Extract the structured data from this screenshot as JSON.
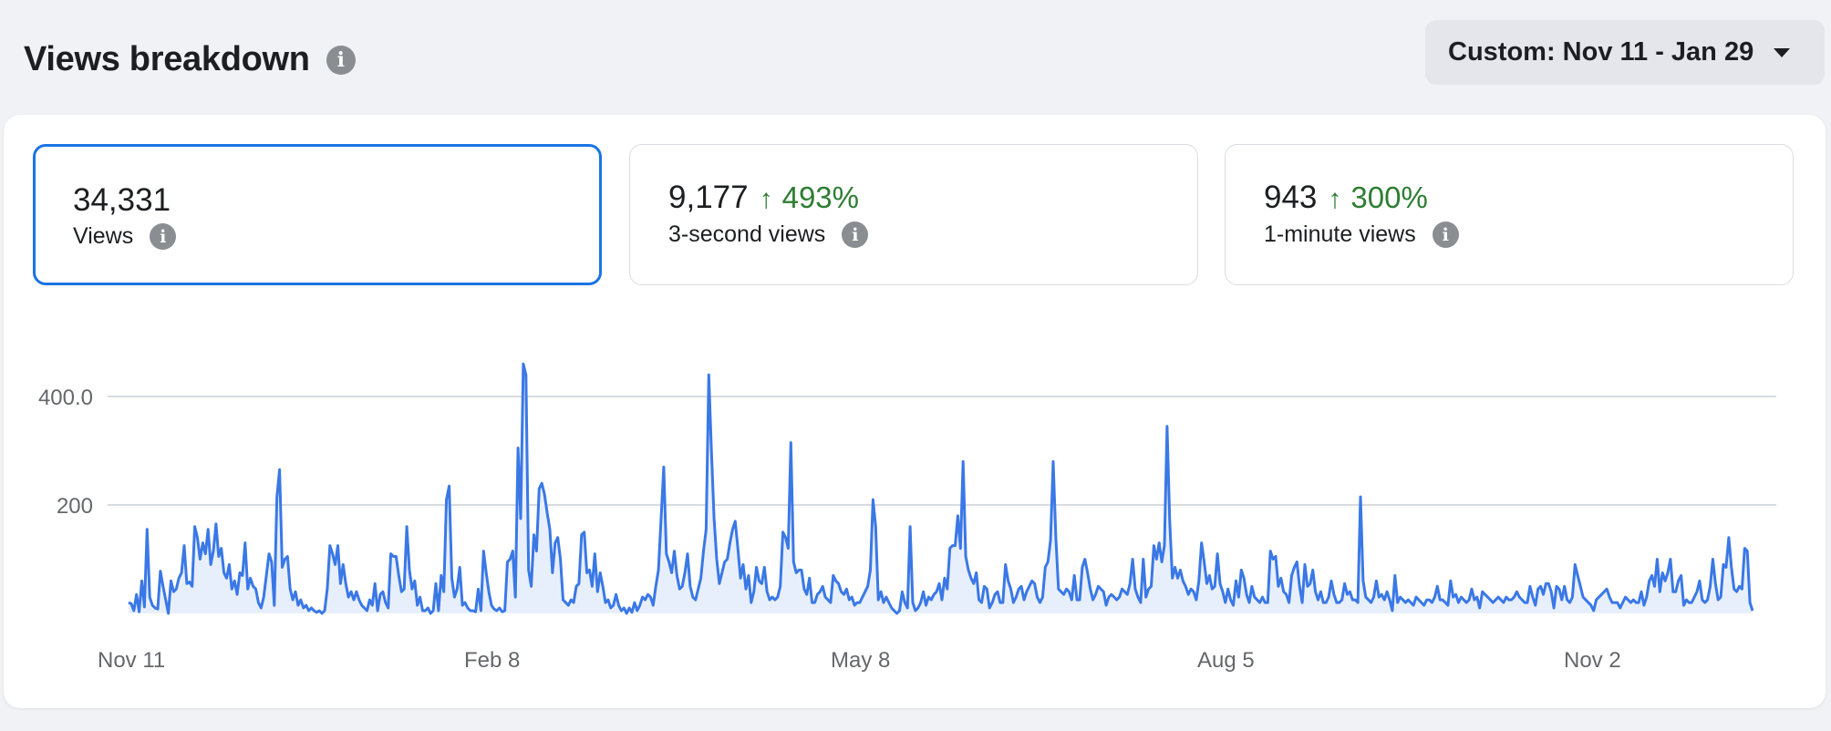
{
  "header": {
    "title": "Views breakdown",
    "date_range_label": "Custom: Nov 11 - Jan 29"
  },
  "metrics": [
    {
      "value": "34,331",
      "change": "",
      "label": "Views",
      "selected": true
    },
    {
      "value": "9,177",
      "change": "493%",
      "label": "3-second views",
      "selected": false
    },
    {
      "value": "943",
      "change": "300%",
      "label": "1-minute views",
      "selected": false
    }
  ],
  "colors": {
    "accent": "#1b74e4",
    "line": "#3a78e6",
    "area": "#e8effc",
    "positive": "#2e7d32"
  },
  "chart_data": {
    "type": "area",
    "yticks": [
      200,
      400
    ],
    "ytick_labels": [
      "200",
      "400.0"
    ],
    "xtick_labels": [
      "Nov 11",
      "Feb 8",
      "May 8",
      "Aug 5",
      "Nov 2"
    ],
    "ylim": [
      0,
      470
    ],
    "grid": true,
    "series": [
      {
        "values": [
          20,
          18,
          5,
          35,
          3,
          60,
          12,
          155,
          30,
          15,
          10,
          8,
          78,
          50,
          25,
          0,
          60,
          40,
          45,
          65,
          75,
          125,
          55,
          58,
          50,
          160,
          140,
          100,
          130,
          110,
          155,
          90,
          115,
          165,
          105,
          120,
          75,
          65,
          90,
          45,
          60,
          35,
          75,
          70,
          130,
          45,
          65,
          50,
          45,
          20,
          10,
          30,
          70,
          110,
          95,
          15,
          215,
          265,
          85,
          100,
          105,
          45,
          25,
          40,
          15,
          25,
          10,
          15,
          5,
          10,
          5,
          2,
          5,
          0,
          5,
          45,
          125,
          110,
          90,
          125,
          55,
          90,
          55,
          30,
          40,
          25,
          40,
          25,
          15,
          10,
          5,
          25,
          15,
          55,
          5,
          35,
          40,
          20,
          10,
          110,
          105,
          105,
          70,
          40,
          45,
          160,
          80,
          45,
          60,
          15,
          30,
          5,
          5,
          10,
          0,
          5,
          55,
          5,
          70,
          40,
          210,
          235,
          65,
          30,
          45,
          85,
          15,
          20,
          10,
          5,
          5,
          3,
          45,
          5,
          115,
          75,
          40,
          15,
          8,
          5,
          10,
          3,
          5,
          95,
          100,
          115,
          30,
          305,
          175,
          460,
          440,
          80,
          50,
          145,
          115,
          230,
          240,
          220,
          185,
          155,
          75,
          130,
          140,
          100,
          25,
          20,
          15,
          25,
          20,
          50,
          55,
          145,
          150,
          75,
          80,
          50,
          110,
          40,
          75,
          50,
          20,
          25,
          10,
          15,
          35,
          15,
          5,
          10,
          0,
          10,
          2,
          20,
          5,
          15,
          30,
          25,
          35,
          30,
          15,
          50,
          80,
          175,
          270,
          110,
          95,
          75,
          115,
          70,
          45,
          50,
          75,
          110,
          50,
          30,
          25,
          45,
          65,
          115,
          155,
          440,
          300,
          175,
          100,
          55,
          75,
          95,
          100,
          130,
          155,
          170,
          120,
          65,
          90,
          45,
          70,
          20,
          40,
          85,
          60,
          55,
          85,
          40,
          25,
          30,
          25,
          30,
          50,
          150,
          140,
          120,
          315,
          95,
          75,
          80,
          80,
          45,
          35,
          65,
          20,
          20,
          35,
          40,
          50,
          30,
          25,
          20,
          70,
          60,
          55,
          40,
          35,
          45,
          25,
          30,
          15,
          20,
          20,
          30,
          40,
          50,
          80,
          210,
          160,
          25,
          40,
          20,
          30,
          20,
          10,
          5,
          0,
          5,
          40,
          20,
          10,
          160,
          20,
          5,
          10,
          20,
          40,
          15,
          30,
          25,
          35,
          40,
          55,
          25,
          65,
          45,
          120,
          125,
          125,
          180,
          120,
          280,
          105,
          80,
          65,
          55,
          75,
          25,
          20,
          50,
          45,
          10,
          20,
          35,
          40,
          20,
          20,
          90,
          60,
          45,
          20,
          30,
          45,
          50,
          25,
          40,
          50,
          60,
          55,
          30,
          20,
          30,
          85,
          95,
          135,
          280,
          140,
          45,
          40,
          35,
          45,
          40,
          25,
          70,
          25,
          25,
          85,
          100,
          75,
          45,
          25,
          35,
          50,
          45,
          40,
          15,
          30,
          35,
          30,
          25,
          30,
          45,
          40,
          35,
          55,
          100,
          45,
          30,
          20,
          100,
          30,
          45,
          50,
          125,
          100,
          130,
          95,
          125,
          345,
          170,
          65,
          85,
          65,
          80,
          60,
          50,
          35,
          45,
          40,
          25,
          60,
          130,
          95,
          55,
          70,
          45,
          50,
          110,
          55,
          40,
          20,
          45,
          25,
          15,
          60,
          30,
          80,
          65,
          35,
          20,
          50,
          30,
          25,
          20,
          30,
          20,
          20,
          115,
          100,
          105,
          50,
          65,
          40,
          35,
          20,
          70,
          85,
          95,
          50,
          20,
          90,
          50,
          55,
          80,
          40,
          25,
          40,
          20,
          20,
          30,
          60,
          35,
          20,
          20,
          25,
          55,
          35,
          40,
          25,
          25,
          20,
          215,
          60,
          30,
          25,
          20,
          30,
          60,
          30,
          35,
          25,
          40,
          25,
          5,
          70,
          20,
          30,
          25,
          20,
          25,
          20,
          15,
          30,
          25,
          20,
          15,
          25,
          25,
          20,
          30,
          50,
          25,
          25,
          20,
          15,
          60,
          30,
          35,
          20,
          30,
          25,
          20,
          25,
          45,
          25,
          30,
          10,
          40,
          35,
          30,
          25,
          20,
          25,
          30,
          25,
          20,
          30,
          25,
          25,
          30,
          40,
          30,
          25,
          20,
          20,
          50,
          30,
          15,
          45,
          50,
          35,
          55,
          55,
          40,
          10,
          50,
          45,
          25,
          50,
          25,
          20,
          30,
          90,
          70,
          50,
          30,
          25,
          20,
          15,
          5,
          25,
          30,
          35,
          40,
          45,
          30,
          20,
          20,
          20,
          10,
          20,
          30,
          25,
          20,
          25,
          20,
          20,
          40,
          15,
          30,
          60,
          70,
          50,
          100,
          40,
          75,
          60,
          75,
          100,
          40,
          40,
          60,
          70,
          15,
          25,
          20,
          20,
          30,
          40,
          60,
          25,
          20,
          25,
          50,
          100,
          55,
          25,
          30,
          90,
          85,
          140,
          85,
          45,
          40,
          50,
          45,
          120,
          115,
          20,
          5
        ]
      }
    ]
  }
}
